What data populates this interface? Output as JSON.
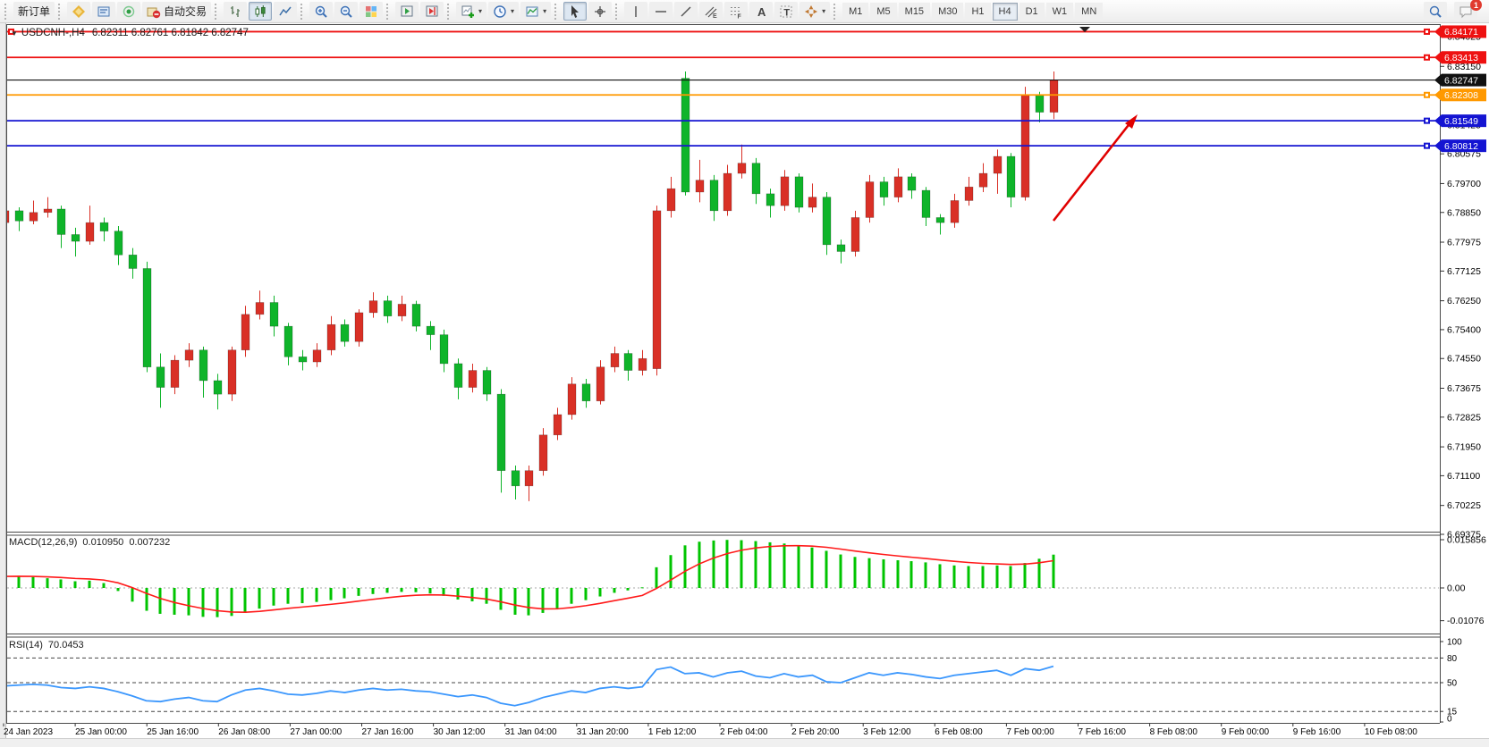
{
  "toolbar": {
    "groups": [
      {
        "items": [
          {
            "name": "new-order",
            "label": "新订单"
          }
        ]
      },
      {
        "items": [
          {
            "name": "symbols",
            "icon": "symbols"
          },
          {
            "name": "market-watch",
            "icon": "market"
          },
          {
            "name": "signals",
            "icon": "signals"
          },
          {
            "name": "auto-trading",
            "icon": "autotrade",
            "label": "自动交易"
          }
        ]
      },
      {
        "items": [
          {
            "name": "chart-bars",
            "icon": "bars"
          },
          {
            "name": "chart-candles",
            "icon": "candles",
            "active": true
          },
          {
            "name": "chart-line",
            "icon": "linechart"
          }
        ]
      },
      {
        "items": [
          {
            "name": "zoom-in",
            "icon": "zoomin"
          },
          {
            "name": "zoom-out",
            "icon": "zoomout"
          },
          {
            "name": "tile-windows",
            "icon": "tile"
          }
        ]
      },
      {
        "items": [
          {
            "name": "auto-scroll",
            "icon": "autoscroll"
          },
          {
            "name": "chart-shift",
            "icon": "shift"
          }
        ]
      },
      {
        "items": [
          {
            "name": "new-chart",
            "icon": "newchart",
            "dropdown": true
          },
          {
            "name": "profiles",
            "icon": "clock",
            "dropdown": true
          },
          {
            "name": "templates",
            "icon": "template",
            "dropdown": true
          }
        ]
      },
      {
        "items": [
          {
            "name": "cursor",
            "icon": "cursor",
            "active": true
          },
          {
            "name": "crosshair",
            "icon": "crosshair"
          }
        ]
      },
      {
        "items": [
          {
            "name": "vertical-line",
            "icon": "vline"
          },
          {
            "name": "horizontal-line",
            "icon": "hline"
          },
          {
            "name": "trendline",
            "icon": "trend"
          },
          {
            "name": "equidistant-channel",
            "icon": "channel"
          },
          {
            "name": "fibonacci",
            "icon": "fibo"
          },
          {
            "name": "text",
            "icon": "textA"
          },
          {
            "name": "text-label",
            "icon": "textT"
          },
          {
            "name": "arrows",
            "icon": "arrows",
            "dropdown": true
          }
        ]
      }
    ],
    "timeframes": [
      "M1",
      "M5",
      "M15",
      "M30",
      "H1",
      "H4",
      "D1",
      "W1",
      "MN"
    ],
    "active_timeframe": "H4",
    "badge_count": "1"
  },
  "chart": {
    "title": "USDCNH-,H4",
    "ohlc_text": "6.82311 6.82761 6.81842 6.82747"
  },
  "chart_data": {
    "type": "candlestick",
    "symbol": "USDCNH-",
    "period": "H4",
    "ohlc_current": {
      "open": "6.82311",
      "high": "6.82761",
      "low": "6.81842",
      "close": "6.82747"
    },
    "ylim": [
      6.69,
      6.845
    ],
    "price_axis_ticks": [
      "6.84025",
      "6.83150",
      "6.81425",
      "6.80575",
      "6.79700",
      "6.78850",
      "6.77975",
      "6.77125",
      "6.76250",
      "6.75400",
      "6.74550",
      "6.73675",
      "6.72825",
      "6.71950",
      "6.71100",
      "6.70225",
      "6.69375"
    ],
    "hlines": [
      {
        "price": 6.84171,
        "label": "6.84171",
        "color": "#ee1111",
        "width": 1.8,
        "left_handle": true,
        "handle": true
      },
      {
        "price": 6.83413,
        "label": "6.83413",
        "color": "#ee1111",
        "width": 1.8,
        "handle": true
      },
      {
        "price": 6.82747,
        "label": "6.82747",
        "color": "#111111",
        "width": 1.1,
        "handle": false
      },
      {
        "price": 6.82308,
        "label": "6.82308",
        "color": "#ff9900",
        "width": 1.8,
        "handle": true
      },
      {
        "price": 6.81549,
        "label": "6.81549",
        "color": "#1414d2",
        "width": 1.8,
        "handle": true
      },
      {
        "price": 6.80812,
        "label": "6.80812",
        "color": "#1414d2",
        "width": 1.8,
        "handle": true
      }
    ],
    "time_labels": [
      "24 Jan 2023",
      "25 Jan 00:00",
      "25 Jan 16:00",
      "26 Jan 08:00",
      "27 Jan 00:00",
      "27 Jan 16:00",
      "30 Jan 12:00",
      "31 Jan 04:00",
      "31 Jan 20:00",
      "1 Feb 12:00",
      "2 Feb 04:00",
      "2 Feb 20:00",
      "3 Feb 12:00",
      "6 Feb 08:00",
      "7 Feb 00:00",
      "7 Feb 16:00",
      "8 Feb 08:00",
      "9 Feb 00:00",
      "9 Feb 16:00",
      "10 Feb 08:00"
    ],
    "candles": [
      [
        6.7855,
        6.7905,
        6.784,
        6.789
      ],
      [
        6.789,
        6.79,
        6.783,
        6.786
      ],
      [
        6.786,
        6.792,
        6.785,
        6.7885
      ],
      [
        6.7885,
        6.793,
        6.787,
        6.7895
      ],
      [
        6.7895,
        6.7905,
        6.778,
        6.782
      ],
      [
        6.782,
        6.784,
        6.7755,
        6.78
      ],
      [
        6.78,
        6.7905,
        6.779,
        6.7855
      ],
      [
        6.7855,
        6.787,
        6.78,
        6.783
      ],
      [
        6.783,
        6.7845,
        6.773,
        6.776
      ],
      [
        6.776,
        6.778,
        6.769,
        6.772
      ],
      [
        6.772,
        6.774,
        6.7415,
        6.743
      ],
      [
        6.743,
        6.747,
        6.731,
        6.737
      ],
      [
        6.737,
        6.7465,
        6.735,
        6.745
      ],
      [
        6.745,
        6.75,
        6.743,
        6.748
      ],
      [
        6.748,
        6.749,
        6.734,
        6.739
      ],
      [
        6.739,
        6.741,
        6.7305,
        6.735
      ],
      [
        6.735,
        6.749,
        6.733,
        6.748
      ],
      [
        6.748,
        6.761,
        6.746,
        6.7585
      ],
      [
        6.7585,
        6.7655,
        6.757,
        6.762
      ],
      [
        6.762,
        6.764,
        6.752,
        6.755
      ],
      [
        6.755,
        6.756,
        6.7435,
        6.746
      ],
      [
        6.746,
        6.748,
        6.742,
        6.7445
      ],
      [
        6.7445,
        6.75,
        6.743,
        6.748
      ],
      [
        6.748,
        6.758,
        6.7465,
        6.7555
      ],
      [
        6.7555,
        6.757,
        6.749,
        6.7505
      ],
      [
        6.7505,
        6.76,
        6.749,
        6.759
      ],
      [
        6.759,
        6.765,
        6.7575,
        6.7625
      ],
      [
        6.7625,
        6.764,
        6.756,
        6.758
      ],
      [
        6.758,
        6.764,
        6.7565,
        6.7615
      ],
      [
        6.7615,
        6.7625,
        6.7535,
        6.755
      ],
      [
        6.755,
        6.7565,
        6.748,
        6.7525
      ],
      [
        6.7525,
        6.754,
        6.7415,
        6.744
      ],
      [
        6.744,
        6.7455,
        6.7335,
        6.737
      ],
      [
        6.737,
        6.744,
        6.7355,
        6.742
      ],
      [
        6.742,
        6.743,
        6.733,
        6.735
      ],
      [
        6.735,
        6.7365,
        6.706,
        6.7125
      ],
      [
        6.7125,
        6.714,
        6.704,
        6.708
      ],
      [
        6.708,
        6.714,
        6.7035,
        6.7125
      ],
      [
        6.7125,
        6.725,
        6.711,
        6.723
      ],
      [
        6.723,
        6.731,
        6.7215,
        6.729
      ],
      [
        6.729,
        6.74,
        6.7275,
        6.738
      ],
      [
        6.738,
        6.7395,
        6.731,
        6.733
      ],
      [
        6.733,
        6.745,
        6.732,
        6.743
      ],
      [
        6.743,
        6.749,
        6.7415,
        6.747
      ],
      [
        6.747,
        6.748,
        6.739,
        6.742
      ],
      [
        6.742,
        6.748,
        6.7405,
        6.7455
      ],
      [
        6.7425,
        6.7905,
        6.7405,
        6.789
      ],
      [
        6.789,
        6.799,
        6.787,
        6.7955
      ],
      [
        6.828,
        6.83,
        6.7935,
        6.7945
      ],
      [
        6.7945,
        6.804,
        6.7915,
        6.798
      ],
      [
        6.798,
        6.7995,
        6.786,
        6.789
      ],
      [
        6.789,
        6.8025,
        6.7875,
        6.8
      ],
      [
        6.8,
        6.8085,
        6.7985,
        6.803
      ],
      [
        6.803,
        6.8045,
        6.791,
        6.794
      ],
      [
        6.794,
        6.7955,
        6.787,
        6.7905
      ],
      [
        6.7905,
        6.801,
        6.789,
        6.799
      ],
      [
        6.799,
        6.8,
        6.7885,
        6.79
      ],
      [
        6.79,
        6.797,
        6.7885,
        6.793
      ],
      [
        6.793,
        6.7945,
        6.776,
        6.779
      ],
      [
        6.779,
        6.7805,
        6.7735,
        6.777
      ],
      [
        6.777,
        6.789,
        6.7755,
        6.787
      ],
      [
        6.787,
        6.7995,
        6.7855,
        6.7975
      ],
      [
        6.7975,
        6.799,
        6.7905,
        6.793
      ],
      [
        6.793,
        6.8015,
        6.7915,
        6.799
      ],
      [
        6.799,
        6.8,
        6.7925,
        6.795
      ],
      [
        6.795,
        6.796,
        6.7845,
        6.787
      ],
      [
        6.787,
        6.788,
        6.782,
        6.7855
      ],
      [
        6.7855,
        6.794,
        6.784,
        6.792
      ],
      [
        6.792,
        6.799,
        6.7905,
        6.796
      ],
      [
        6.796,
        6.803,
        6.7945,
        6.8
      ],
      [
        6.8,
        6.807,
        6.794,
        6.805
      ],
      [
        6.805,
        6.806,
        6.79,
        6.793
      ],
      [
        6.793,
        6.8255,
        6.792,
        6.823
      ],
      [
        6.823,
        6.824,
        6.815,
        6.818
      ],
      [
        6.818,
        6.83,
        6.816,
        6.8275
      ]
    ],
    "macd": {
      "label": "MACD(12,26,9)",
      "value_main": "0.010950",
      "value_signal": "0.007232",
      "scale": [
        "0.015856",
        "0.00",
        "-0.01076"
      ],
      "scale_values": [
        0.015856,
        0,
        -0.01076
      ],
      "values": [
        0.0038,
        0.004,
        0.0036,
        0.0032,
        0.0028,
        0.0022,
        0.0024,
        0.0016,
        -0.001,
        -0.0045,
        -0.0075,
        -0.0085,
        -0.0088,
        -0.009,
        -0.0095,
        -0.0096,
        -0.0092,
        -0.0082,
        -0.0068,
        -0.0058,
        -0.0052,
        -0.005,
        -0.0046,
        -0.004,
        -0.0034,
        -0.0026,
        -0.002,
        -0.0016,
        -0.0013,
        -0.0014,
        -0.0018,
        -0.0026,
        -0.0038,
        -0.0044,
        -0.0052,
        -0.0072,
        -0.0088,
        -0.009,
        -0.0082,
        -0.0068,
        -0.0052,
        -0.004,
        -0.0028,
        -0.0016,
        -0.0008,
        0.0002,
        0.0068,
        0.0108,
        0.014,
        0.0152,
        0.0156,
        0.0158,
        0.0157,
        0.0154,
        0.015,
        0.0146,
        0.014,
        0.0133,
        0.0122,
        0.011,
        0.0102,
        0.0098,
        0.0094,
        0.0091,
        0.0088,
        0.0084,
        0.0078,
        0.0074,
        0.0072,
        0.0072,
        0.0074,
        0.0072,
        0.0082,
        0.0096,
        0.01095
      ]
    },
    "rsi": {
      "label": "RSI(14)",
      "value": "70.0453",
      "scale": [
        "100",
        "80",
        "50",
        "15",
        "0"
      ],
      "levels": [
        80,
        50,
        15
      ],
      "values": [
        46,
        47,
        48,
        47,
        44,
        43,
        45,
        43,
        39,
        34,
        28,
        27,
        30,
        32,
        28,
        27,
        35,
        41,
        43,
        40,
        36,
        35,
        37,
        40,
        38,
        41,
        43,
        41,
        42,
        40,
        39,
        36,
        33,
        35,
        32,
        25,
        22,
        26,
        32,
        36,
        40,
        38,
        43,
        45,
        43,
        45,
        66,
        69,
        61,
        62,
        57,
        62,
        64,
        58,
        56,
        61,
        57,
        59,
        51,
        50,
        56,
        62,
        59,
        62,
        60,
        57,
        55,
        59,
        61,
        63,
        65,
        59,
        67,
        65,
        70
      ]
    },
    "colors": {
      "up": "#d93026",
      "down": "#0fb42a",
      "macd_hist": "#00c400",
      "macd_signal": "#ff1a1a",
      "rsi_line": "#3b97fd",
      "annotation_arrow": "#e00000"
    }
  }
}
